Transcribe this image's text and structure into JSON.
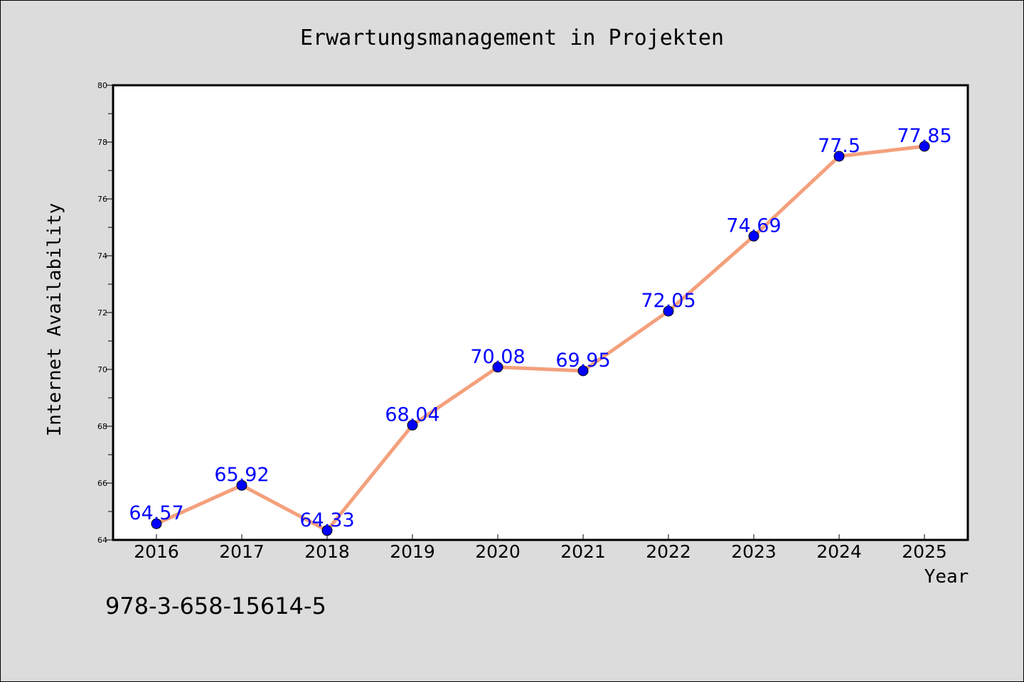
{
  "chart_data": {
    "type": "line",
    "title": "Erwartungsmanagement in Projekten",
    "xlabel": "Year",
    "ylabel": "Internet Availability",
    "x": [
      "2016",
      "2017",
      "2018",
      "2019",
      "2020",
      "2021",
      "2022",
      "2023",
      "2024",
      "2025"
    ],
    "series": [
      {
        "values": [
          64.57,
          65.92,
          64.33,
          68.04,
          70.08,
          69.95,
          72.05,
          74.69,
          77.5,
          77.85
        ],
        "labels": [
          "64.57",
          "65.92",
          "64.33",
          "68.04",
          "70.08",
          "69.95",
          "72.05",
          "74.69",
          "77.5",
          "77.85"
        ],
        "line_color": "#f4a07c",
        "marker_color": "#0000ff"
      }
    ],
    "ylim": [
      64,
      80
    ],
    "yticks": [
      "64",
      "66",
      "68",
      "70",
      "72",
      "74",
      "76",
      "78",
      "80"
    ],
    "grid": false,
    "legend": "none"
  },
  "footer": {
    "isbn": "978-3-658-15614-5"
  }
}
